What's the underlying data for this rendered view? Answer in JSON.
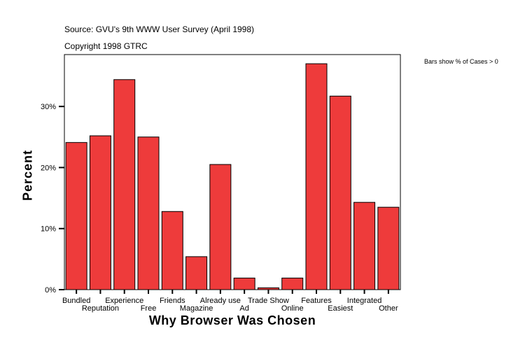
{
  "chart_data": {
    "type": "bar",
    "source": "Source: GVU's 9th WWW User Survey (April 1998)",
    "copyright": "Copyright 1998 GTRC",
    "note": "Bars show % of Cases > 0",
    "xlabel": "Why Browser Was Chosen",
    "ylabel": "Percent",
    "categories": [
      "Bundled",
      "Reputation",
      "Experience",
      "Free",
      "Friends",
      "Magazine",
      "Already use",
      "Ad",
      "Trade Show",
      "Online",
      "Features",
      "Easiest",
      "Integrated",
      "Other"
    ],
    "values": [
      24.1,
      25.2,
      34.4,
      25.0,
      12.8,
      5.4,
      20.5,
      1.9,
      0.3,
      1.9,
      37.0,
      31.7,
      14.3,
      13.5
    ],
    "yticks": [
      0,
      10,
      20,
      30
    ],
    "ytick_labels": [
      "0%",
      "10%",
      "20%",
      "30%"
    ],
    "ylim": [
      0,
      38.5
    ],
    "grid": false,
    "bar_color": "#ee3b3b"
  }
}
